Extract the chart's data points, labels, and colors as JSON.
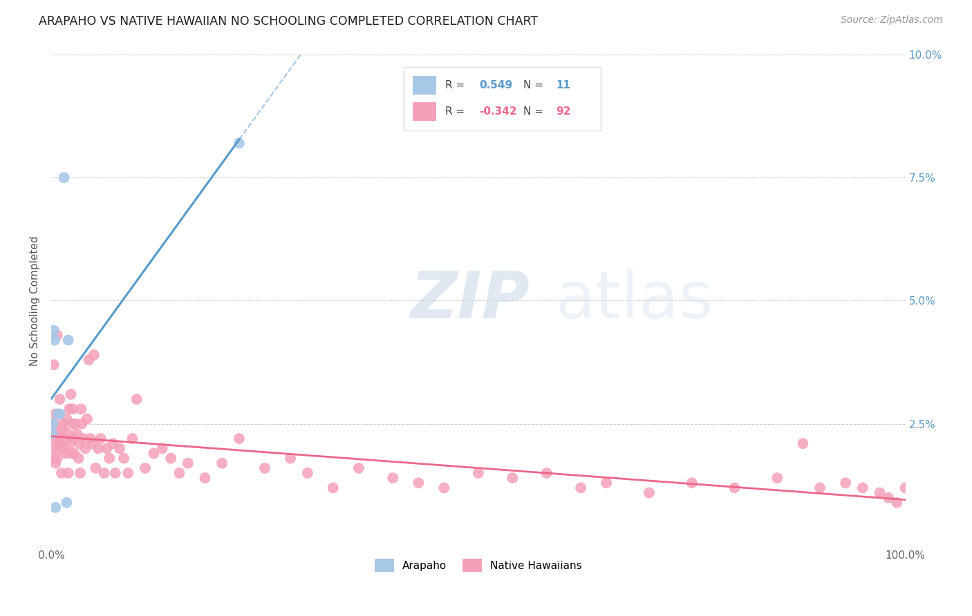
{
  "title": "ARAPAHO VS NATIVE HAWAIIAN NO SCHOOLING COMPLETED CORRELATION CHART",
  "source": "Source: ZipAtlas.com",
  "ylabel": "No Schooling Completed",
  "xlim": [
    0.0,
    1.0
  ],
  "ylim": [
    0.0,
    0.1
  ],
  "xticks": [
    0.0,
    0.25,
    0.5,
    0.75,
    1.0
  ],
  "xticklabels": [
    "0.0%",
    "",
    "",
    "",
    "100.0%"
  ],
  "yticks": [
    0.0,
    0.025,
    0.05,
    0.075,
    0.1
  ],
  "yticklabels_right": [
    "",
    "2.5%",
    "5.0%",
    "7.5%",
    "10.0%"
  ],
  "arapaho_R": 0.549,
  "arapaho_N": 11,
  "native_hawaiian_R": -0.342,
  "native_hawaiian_N": 92,
  "arapaho_color": "#a8c8e8",
  "native_hawaiian_color": "#f4a0b8",
  "arapaho_line_color": "#5599cc",
  "native_hawaiian_line_color": "#ee6688",
  "watermark_zip": "ZIP",
  "watermark_atlas": "atlas",
  "arapaho_x": [
    0.001,
    0.002,
    0.003,
    0.004,
    0.005,
    0.008,
    0.01,
    0.015,
    0.018,
    0.02,
    0.22
  ],
  "arapaho_y": [
    0.023,
    0.025,
    0.044,
    0.042,
    0.008,
    0.027,
    0.027,
    0.075,
    0.009,
    0.042,
    0.082
  ],
  "native_hawaiian_x": [
    0.001,
    0.002,
    0.003,
    0.004,
    0.005,
    0.005,
    0.006,
    0.007,
    0.008,
    0.009,
    0.01,
    0.01,
    0.012,
    0.013,
    0.014,
    0.015,
    0.016,
    0.017,
    0.018,
    0.019,
    0.02,
    0.021,
    0.022,
    0.023,
    0.024,
    0.025,
    0.026,
    0.027,
    0.028,
    0.03,
    0.032,
    0.033,
    0.034,
    0.035,
    0.036,
    0.038,
    0.04,
    0.042,
    0.044,
    0.046,
    0.048,
    0.05,
    0.052,
    0.055,
    0.058,
    0.062,
    0.065,
    0.068,
    0.072,
    0.075,
    0.08,
    0.085,
    0.09,
    0.095,
    0.1,
    0.11,
    0.12,
    0.13,
    0.14,
    0.15,
    0.16,
    0.18,
    0.2,
    0.22,
    0.25,
    0.28,
    0.3,
    0.33,
    0.36,
    0.4,
    0.43,
    0.46,
    0.5,
    0.54,
    0.58,
    0.62,
    0.65,
    0.7,
    0.75,
    0.8,
    0.85,
    0.88,
    0.9,
    0.93,
    0.95,
    0.97,
    0.98,
    0.99,
    1.0,
    0.003,
    0.007,
    0.025
  ],
  "native_hawaiian_y": [
    0.022,
    0.02,
    0.018,
    0.025,
    0.027,
    0.017,
    0.023,
    0.018,
    0.022,
    0.02,
    0.021,
    0.03,
    0.015,
    0.024,
    0.025,
    0.02,
    0.022,
    0.019,
    0.026,
    0.023,
    0.015,
    0.028,
    0.021,
    0.031,
    0.019,
    0.025,
    0.022,
    0.019,
    0.025,
    0.023,
    0.018,
    0.021,
    0.015,
    0.028,
    0.025,
    0.022,
    0.02,
    0.026,
    0.038,
    0.022,
    0.021,
    0.039,
    0.016,
    0.02,
    0.022,
    0.015,
    0.02,
    0.018,
    0.021,
    0.015,
    0.02,
    0.018,
    0.015,
    0.022,
    0.03,
    0.016,
    0.019,
    0.02,
    0.018,
    0.015,
    0.017,
    0.014,
    0.017,
    0.022,
    0.016,
    0.018,
    0.015,
    0.012,
    0.016,
    0.014,
    0.013,
    0.012,
    0.015,
    0.014,
    0.015,
    0.012,
    0.013,
    0.011,
    0.013,
    0.012,
    0.014,
    0.021,
    0.012,
    0.013,
    0.012,
    0.011,
    0.01,
    0.009,
    0.012,
    0.037,
    0.043,
    0.028
  ]
}
